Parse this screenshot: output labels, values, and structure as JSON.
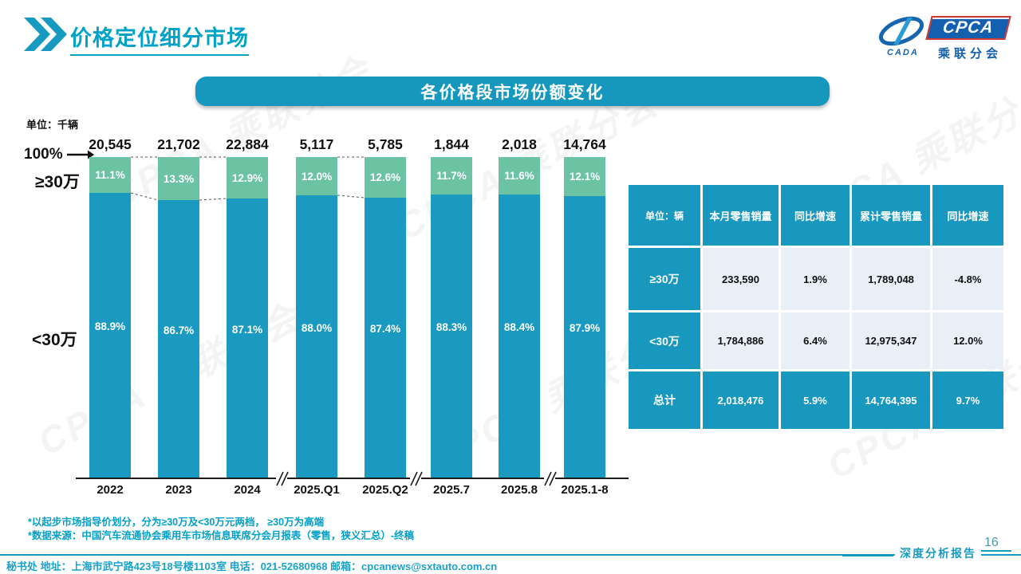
{
  "header": {
    "title": "价格定位细分市场",
    "logo": {
      "brand": "CPCA",
      "sub": "乘联分会",
      "swoosh_caption": "CADA"
    }
  },
  "banner": {
    "title": "各价格段市场份额变化"
  },
  "chart_data": {
    "type": "bar",
    "stacked": true,
    "percent_scale": true,
    "title": "各价格段市场份额变化",
    "unit_label": "单位：千辆",
    "axis_top_label": "100%",
    "categories": [
      "2022",
      "2023",
      "2024",
      "2025.Q1",
      "2025.Q2",
      "2025.7",
      "2025.8",
      "2025.1-8"
    ],
    "totals": [
      "20,545",
      "21,702",
      "22,884",
      "5,117",
      "5,785",
      "1,844",
      "2,018",
      "14,764"
    ],
    "series": [
      {
        "name": "≥30万",
        "color": "#6CC3A4",
        "values": [
          11.1,
          13.3,
          12.9,
          12.0,
          12.6,
          11.7,
          11.6,
          12.1
        ]
      },
      {
        "name": "<30万",
        "color": "#1A9AC0",
        "values": [
          88.9,
          86.7,
          87.1,
          88.0,
          87.4,
          88.3,
          88.4,
          87.9
        ]
      }
    ],
    "ylim": [
      0,
      100
    ],
    "grid": false,
    "legend_position": "left-axis",
    "connected_pairs": [
      [
        0,
        1
      ],
      [
        1,
        2
      ],
      [
        3,
        4
      ]
    ],
    "axis_breaks_after_index": [
      2,
      4,
      6
    ]
  },
  "table": {
    "header": [
      "单位：辆",
      "本月零售销量",
      "同比增速",
      "累计零售销量",
      "同比增速"
    ],
    "rows": [
      {
        "label": "≥30万",
        "cells": [
          "233,590",
          "1.9%",
          "1,789,048",
          "-4.8%"
        ],
        "total": false
      },
      {
        "label": "<30万",
        "cells": [
          "1,784,886",
          "6.4%",
          "12,975,347",
          "12.0%"
        ],
        "total": false
      },
      {
        "label": "总计",
        "cells": [
          "2,018,476",
          "5.9%",
          "14,764,395",
          "9.7%"
        ],
        "total": true
      }
    ]
  },
  "footnotes": [
    "*以起步市场指导价划分，分为≥30万及<30万元两档， ≥30万为高端",
    "*数据来源：中国汽车流通协会乘用车市场信息联席分会月报表（零售，狭义汇总）-终稿"
  ],
  "footer": {
    "contact": "秘书处  地址：上海市武宁路423号18号楼1103室 电话：021-52680968  邮箱：cpcanews@sxtauto.com.cn",
    "report_label": "深度分析报告",
    "page_number": "16"
  },
  "watermark": {
    "text": "CPCA 乘联分会"
  },
  "colors": {
    "primary": "#1A9AC0",
    "green": "#6CC3A4",
    "accent": "#00A2C8"
  }
}
